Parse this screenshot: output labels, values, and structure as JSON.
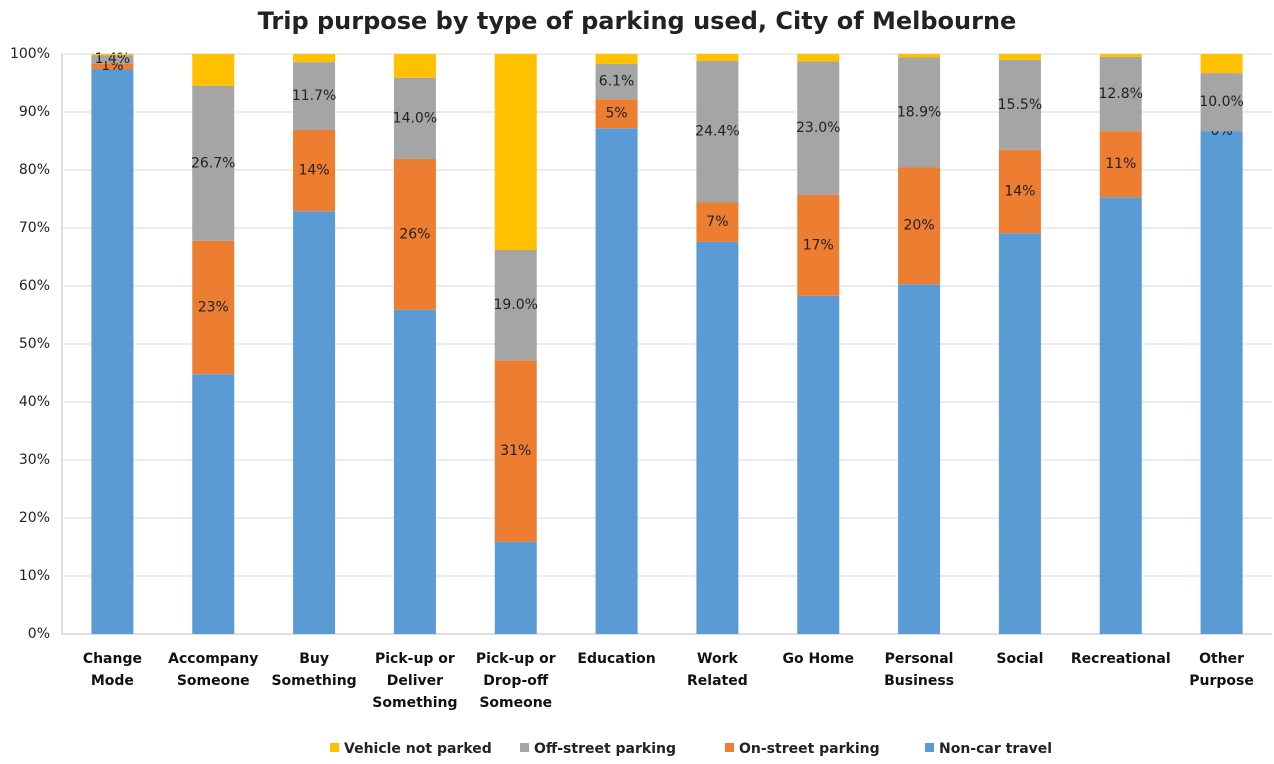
{
  "chart_data": {
    "type": "stacked_bar",
    "title": "Trip purpose by type of parking used, City of Melbourne",
    "categories": [
      "Change Mode",
      "Accompany Someone",
      "Buy Something",
      "Pick-up or Deliver Something",
      "Pick-up or Drop-off Someone",
      "Education",
      "Work Related",
      "Go Home",
      "Personal Business",
      "Social",
      "Recreational",
      "Other Purpose"
    ],
    "series": [
      {
        "name": "Non-car travel",
        "color": "#5b9bd5",
        "values": [
          97.4,
          44.8,
          72.9,
          55.9,
          15.9,
          87.2,
          67.6,
          58.3,
          60.3,
          69.1,
          75.3,
          86.7
        ]
      },
      {
        "name": "On-street parking",
        "color": "#ed7d31",
        "values": [
          1,
          23,
          14,
          26,
          31.3,
          5,
          6.8,
          17.4,
          20.2,
          14.4,
          11.4,
          0
        ],
        "value_labels": [
          "1%",
          "23%",
          "14%",
          "26%",
          "31%",
          "5%",
          "7%",
          "17%",
          "20%",
          "14%",
          "11%",
          "0%"
        ]
      },
      {
        "name": "Off-street parking",
        "color": "#a5a5a5",
        "values": [
          1.4,
          26.7,
          11.7,
          14.0,
          19.0,
          6.1,
          24.4,
          23.0,
          18.9,
          15.5,
          12.8,
          10.0
        ],
        "value_labels": [
          "1.4%",
          "26.7%",
          "11.7%",
          "14.0%",
          "19.0%",
          "6.1%",
          "24.4%",
          "23.0%",
          "18.9%",
          "15.5%",
          "12.8%",
          "10.0%"
        ]
      },
      {
        "name": "Vehicle not parked",
        "color": "#ffc000",
        "values": [
          0.2,
          5.5,
          1.4,
          4.1,
          33.8,
          1.7,
          1.2,
          1.3,
          0.6,
          1.0,
          0.5,
          3.3
        ]
      }
    ],
    "ylim": [
      0,
      100
    ],
    "yticks": [
      {
        "value": 0,
        "label": "0%"
      },
      {
        "value": 10,
        "label": "10%"
      },
      {
        "value": 20,
        "label": "20%"
      },
      {
        "value": 30,
        "label": "30%"
      },
      {
        "value": 40,
        "label": "40%"
      },
      {
        "value": 50,
        "label": "50%"
      },
      {
        "value": 60,
        "label": "60%"
      },
      {
        "value": 70,
        "label": "70%"
      },
      {
        "value": 80,
        "label": "80%"
      },
      {
        "value": 90,
        "label": "90%"
      },
      {
        "value": 100,
        "label": "100%"
      }
    ],
    "grid": true,
    "legend": "bottom"
  }
}
